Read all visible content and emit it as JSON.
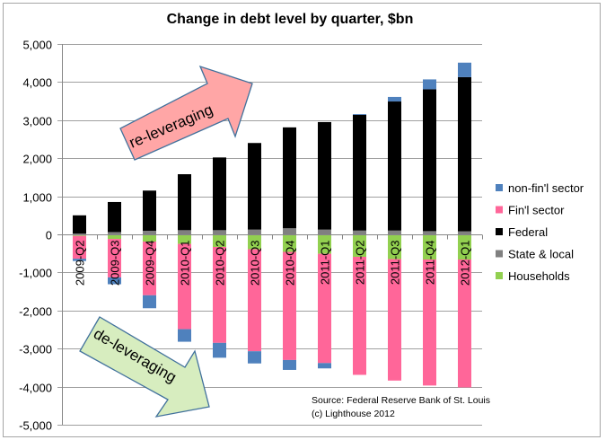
{
  "chart_data": {
    "type": "bar",
    "stacked": true,
    "title": "Change in debt level by quarter, $bn",
    "xlabel": "",
    "ylabel": "",
    "ylim": [
      -5000,
      5000
    ],
    "yticks": [
      5000,
      4000,
      3000,
      2000,
      1000,
      0,
      -1000,
      -2000,
      -3000,
      -4000,
      -5000
    ],
    "ytick_labels": [
      "5,000",
      "4,000",
      "3,000",
      "2,000",
      "1,000",
      "0",
      "-1,000",
      "-2,000",
      "-3,000",
      "-4,000",
      "-5,000"
    ],
    "grid": true,
    "legend_position": "right",
    "categories": [
      "2009-Q2",
      "2009-Q3",
      "2009-Q4",
      "2010-Q1",
      "2010-Q2",
      "2010-Q3",
      "2010-Q4",
      "2011-Q1",
      "2011-Q2",
      "2011-Q3",
      "2011-Q4",
      "2012-Q1"
    ],
    "series": [
      {
        "name": "Households",
        "color": "#92D050",
        "values": [
          -40,
          -120,
          -190,
          -250,
          -330,
          -390,
          -460,
          -510,
          -590,
          -650,
          -660,
          -660
        ]
      },
      {
        "name": "State & local",
        "color": "#808080",
        "values": [
          20,
          60,
          95,
          110,
          110,
          125,
          160,
          125,
          100,
          100,
          85,
          80
        ]
      },
      {
        "name": "Federal",
        "color": "#000000",
        "values": [
          480,
          790,
          1055,
          1470,
          1910,
          2275,
          2650,
          2825,
          3040,
          3390,
          3725,
          4050
        ]
      },
      {
        "name": "Fin'l sector",
        "color": "#FF6699",
        "values": [
          -600,
          -1010,
          -1410,
          -2240,
          -2520,
          -2680,
          -2840,
          -2870,
          -3100,
          -3190,
          -3310,
          -3360
        ]
      },
      {
        "name": "non-fin'l sector",
        "color": "#4F81BD",
        "values": [
          -60,
          -180,
          -340,
          -330,
          -390,
          -320,
          -260,
          -140,
          20,
          120,
          260,
          380
        ]
      }
    ],
    "legend_order": [
      "non-fin'l sector",
      "Fin'l sector",
      "Federal",
      "State & local",
      "Households"
    ],
    "annotations": [
      {
        "text": "re-leveraging",
        "kind": "up-arrow",
        "color": "#FFA6A6"
      },
      {
        "text": "de-leveraging",
        "kind": "down-arrow",
        "color": "#D7EDBF"
      }
    ],
    "source_lines": [
      "Source: Federal Reserve Bank of St. Louis",
      "(c) Lighthouse 2012"
    ]
  }
}
